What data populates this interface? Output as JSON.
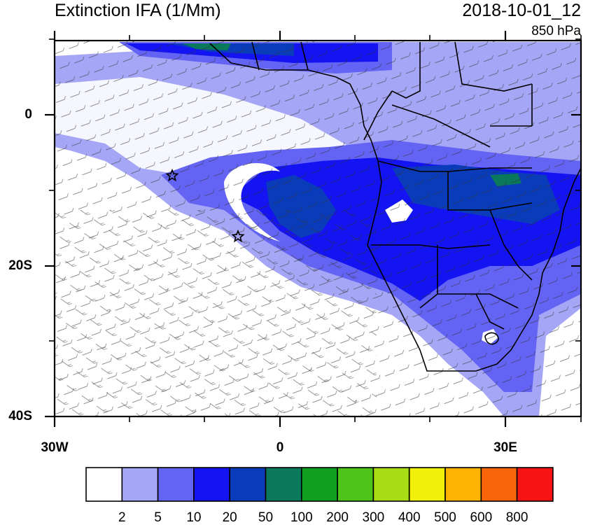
{
  "header": {
    "title": "Extinction IFA (1/Mm)",
    "datetime": "2018-10-01_12",
    "level": "850 hPa"
  },
  "axes": {
    "y_labels": [
      "0",
      "20S",
      "40S"
    ],
    "x_labels": [
      "30W",
      "0",
      "30E"
    ]
  },
  "colorbar": {
    "labels": [
      "2",
      "5",
      "10",
      "20",
      "50",
      "100",
      "200",
      "300",
      "400",
      "500",
      "600",
      "800"
    ],
    "colors": [
      "#ffffff",
      "#a6a6f6",
      "#6464f4",
      "#1414f2",
      "#0a3cba",
      "#0a785a",
      "#10a020",
      "#4cc41a",
      "#a8dc14",
      "#f0f00a",
      "#fcb400",
      "#f8640a",
      "#f81414"
    ]
  },
  "map": {
    "markers": [
      "star",
      "star"
    ]
  }
}
